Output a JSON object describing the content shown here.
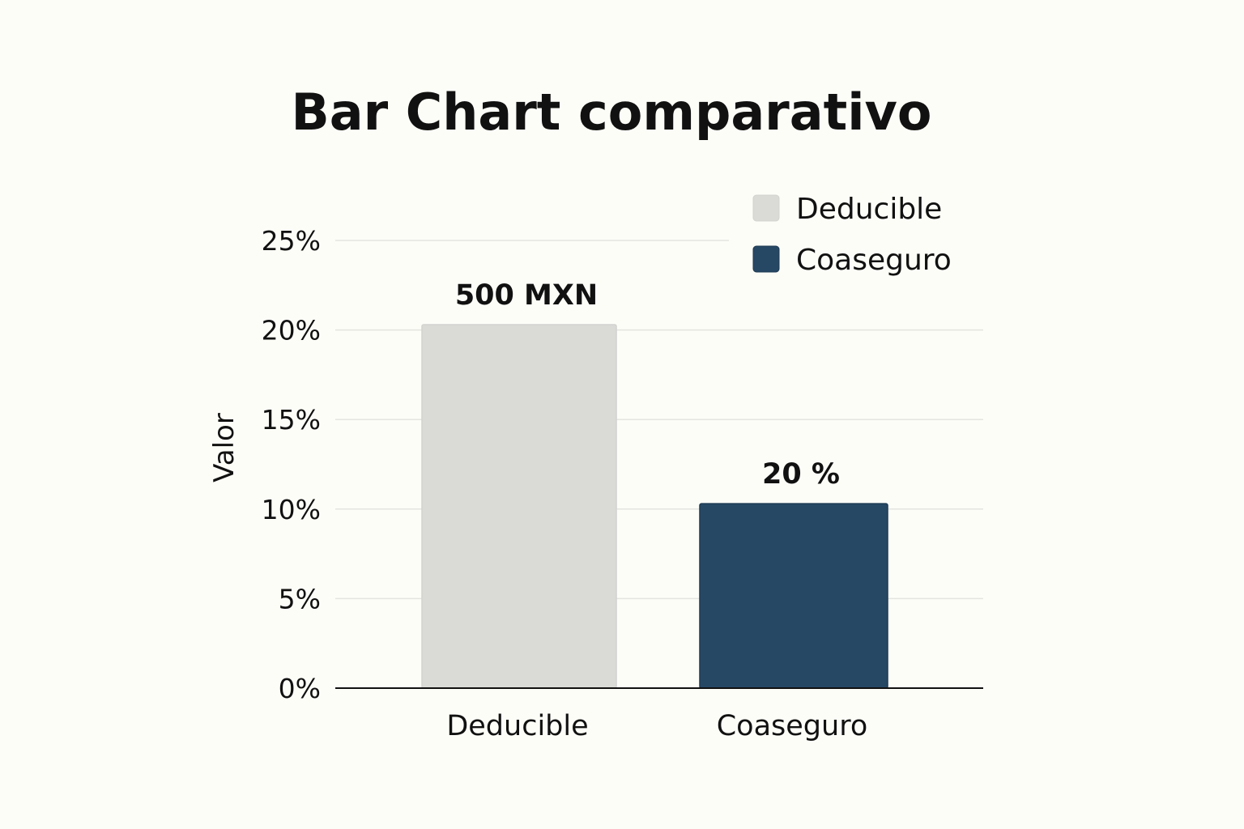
{
  "chart_data": {
    "type": "bar",
    "title": "Bar Chart comparativo",
    "xlabel": "",
    "ylabel": "Valor",
    "categories": [
      "Deducible",
      "Coaseguro"
    ],
    "values": [
      20.3,
      10.3
    ],
    "data_labels": [
      "500 MXN",
      "20 %"
    ],
    "colors": [
      "#dadad7",
      "#264865"
    ],
    "ylim": [
      0,
      25
    ],
    "yticks": [
      0,
      5,
      10,
      15,
      20,
      25
    ],
    "ytick_labels": [
      "0%",
      "5%",
      "10%",
      "15%",
      "20%",
      "25%"
    ],
    "grid": true,
    "legend": {
      "position": "top-right",
      "entries": [
        {
          "label": "Deducible",
          "color": "#dadad7"
        },
        {
          "label": "Coaseguro",
          "color": "#264865"
        }
      ]
    }
  }
}
